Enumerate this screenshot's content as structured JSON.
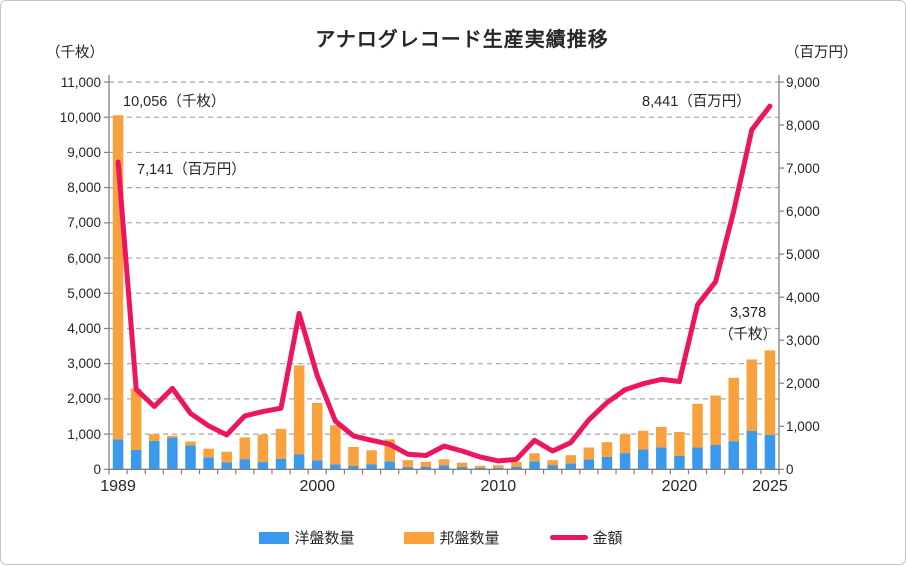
{
  "title": "アナログレコード生産実績推移",
  "axes": {
    "left_unit": "（千枚）",
    "right_unit": "（百万円）",
    "left_tick_labels": [
      "0",
      "1,000",
      "2,000",
      "3,000",
      "4,000",
      "5,000",
      "6,000",
      "7,000",
      "8,000",
      "9,000",
      "10,000",
      "11,000"
    ],
    "right_tick_labels": [
      "0",
      "1,000",
      "2,000",
      "3,000",
      "4,000",
      "5,000",
      "6,000",
      "7,000",
      "8,000",
      "9,000"
    ]
  },
  "annotations": {
    "units_1989": "10,056（千枚）",
    "value_1989": "7,141（百万円）",
    "value_2025": "8,441（百万円）",
    "units_2025_line1": "3,378",
    "units_2025_line2": "（千枚）"
  },
  "legend": {
    "western": "洋盤数量",
    "japanese": "邦盤数量",
    "amount": "金額"
  },
  "colors": {
    "western_bar": "#3B99ED",
    "japanese_bar": "#F9A13C",
    "amount_line": "#EE1560",
    "grid": "#A5A5A5",
    "axis": "#808080",
    "text": "#262626"
  },
  "chart_data": {
    "type": "combo-stacked-bar-line",
    "title": "アナログレコード生産実績推移",
    "x": [
      1989,
      1990,
      1991,
      1992,
      1993,
      1994,
      1995,
      1996,
      1997,
      1998,
      1999,
      2000,
      2001,
      2002,
      2003,
      2004,
      2005,
      2006,
      2007,
      2008,
      2009,
      2010,
      2011,
      2012,
      2013,
      2014,
      2015,
      2016,
      2017,
      2018,
      2019,
      2020,
      2021,
      2022,
      2023,
      2024,
      2025
    ],
    "x_axis_shown_labels": [
      {
        "label": "1989",
        "index": 0
      },
      {
        "label": "2000",
        "index": 11
      },
      {
        "label": "2010",
        "index": 21
      },
      {
        "label": "2020",
        "index": 31
      },
      {
        "label": "2025",
        "index": 36
      }
    ],
    "left_axis": {
      "label": "（千枚）",
      "min": 0,
      "max": 11000,
      "tick_step": 1000
    },
    "right_axis": {
      "label": "（百万円）",
      "min": 0,
      "max": 9000,
      "tick_step": 1000
    },
    "grid": "horizontal-dashed",
    "legend_position": "bottom",
    "series": [
      {
        "name": "洋盤数量",
        "type": "bar",
        "stack": "units",
        "axis": "left",
        "color": "#3B99ED",
        "values": [
          850,
          550,
          810,
          900,
          680,
          340,
          200,
          290,
          205,
          300,
          420,
          255,
          140,
          95,
          145,
          220,
          70,
          75,
          110,
          65,
          40,
          45,
          75,
          225,
          120,
          170,
          280,
          350,
          460,
          560,
          625,
          385,
          620,
          690,
          800,
          1090,
          975
        ]
      },
      {
        "name": "邦盤数量",
        "type": "bar",
        "stack": "units",
        "axis": "left",
        "color": "#F9A13C",
        "values": [
          9206,
          1740,
          190,
          55,
          110,
          245,
          300,
          615,
          785,
          850,
          2530,
          1630,
          1110,
          540,
          395,
          630,
          190,
          140,
          175,
          125,
          60,
          70,
          135,
          230,
          140,
          230,
          340,
          420,
          540,
          535,
          580,
          675,
          1240,
          1405,
          1800,
          2030,
          2403
        ]
      },
      {
        "name": "金額",
        "type": "line",
        "axis": "right",
        "color": "#EE1560",
        "values": [
          7141,
          1860,
          1460,
          1880,
          1300,
          1010,
          800,
          1240,
          1340,
          1420,
          3620,
          2180,
          1120,
          775,
          675,
          580,
          350,
          320,
          540,
          425,
          285,
          195,
          230,
          675,
          425,
          620,
          1150,
          1550,
          1850,
          1990,
          2090,
          2040,
          3820,
          4360,
          6000,
          7890,
          8441
        ]
      }
    ]
  }
}
